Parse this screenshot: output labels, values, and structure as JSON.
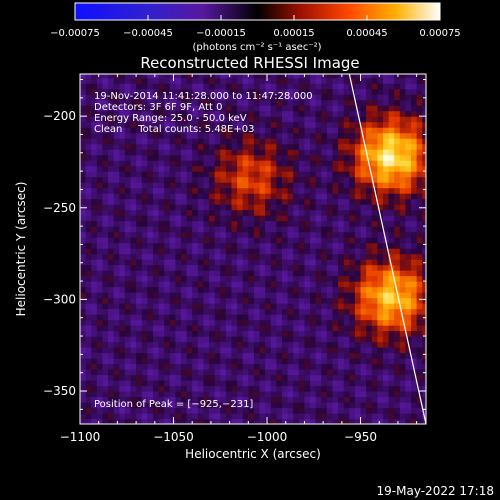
{
  "chart_data": {
    "type": "heatmap",
    "title": "Reconstructed RHESSI Image",
    "xlabel": "Heliocentric X (arcsec)",
    "ylabel": "Heliocentric Y (arcsec)",
    "xlim": [
      -1100,
      -915
    ],
    "ylim": [
      -368,
      -177
    ],
    "x_ticks": [
      -1100,
      -1050,
      -1000,
      -950
    ],
    "y_ticks": [
      -200,
      -250,
      -300,
      -350
    ],
    "x_tick_labels": [
      "−1100",
      "−1050",
      "−1000",
      "−950"
    ],
    "y_tick_labels": [
      "−200",
      "−250",
      "−300",
      "−350"
    ],
    "colorbar": {
      "range": [
        -0.00075,
        0.00075
      ],
      "ticks": [
        -0.00075,
        -0.00045,
        -0.00015,
        0.00015,
        0.00045,
        0.00075
      ],
      "tick_labels": [
        "−0.00075",
        "−0.00045",
        "−0.00015",
        "0.00015",
        "0.00045",
        "0.00075"
      ],
      "unit_label": "(photons cm⁻² s⁻¹ asec⁻²)"
    },
    "annotations": [
      "19-Nov-2014 11:41:28.000 to 11:47:28.000",
      "Detectors: 3F 6F 9F, Att 0",
      "Energy Range: 25.0 - 50.0 keV",
      "Clean     Total counts: 5.48E+03"
    ],
    "peak_label": "Position of Peak = [−925,−231]",
    "peak_position": [
      -925,
      -231
    ],
    "bright_sources": [
      {
        "x": -935,
        "y": -223,
        "value": 0.00075
      },
      {
        "x": -935,
        "y": -300,
        "value": 0.00065
      },
      {
        "x": -1010,
        "y": -235,
        "value": 0.00035
      }
    ],
    "limb_line": [
      [
        -956,
        -177
      ],
      [
        -915,
        -368
      ]
    ],
    "colors": [
      "#0000ff",
      "#4010c0",
      "#5a1ca8",
      "#000000",
      "#a01000",
      "#ff5000",
      "#ffb000",
      "#ffffe0"
    ]
  },
  "footer": {
    "timestamp": "19-May-2022 17:18"
  }
}
